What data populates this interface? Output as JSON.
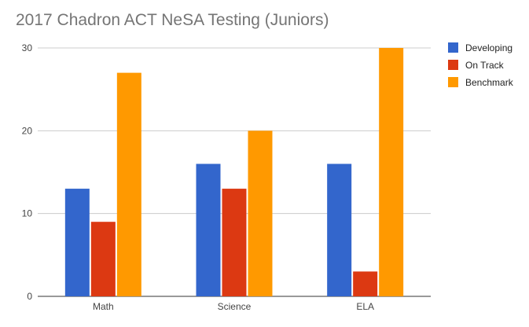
{
  "chart_data": {
    "type": "bar",
    "title": "2017 Chadron ACT NeSA Testing (Juniors)",
    "categories": [
      "Math",
      "Science",
      "ELA"
    ],
    "series": [
      {
        "name": "Developing",
        "values": [
          13,
          16,
          16
        ],
        "color": "#3366cc"
      },
      {
        "name": "On Track",
        "values": [
          9,
          13,
          3
        ],
        "color": "#dc3912"
      },
      {
        "name": "Benchmark",
        "values": [
          27,
          20,
          30
        ],
        "color": "#ff9900"
      }
    ],
    "xlabel": "",
    "ylabel": "",
    "ylim": [
      0,
      30
    ],
    "yticks": [
      "0",
      "10",
      "20",
      "30"
    ],
    "grid": true,
    "legend_position": "right"
  }
}
